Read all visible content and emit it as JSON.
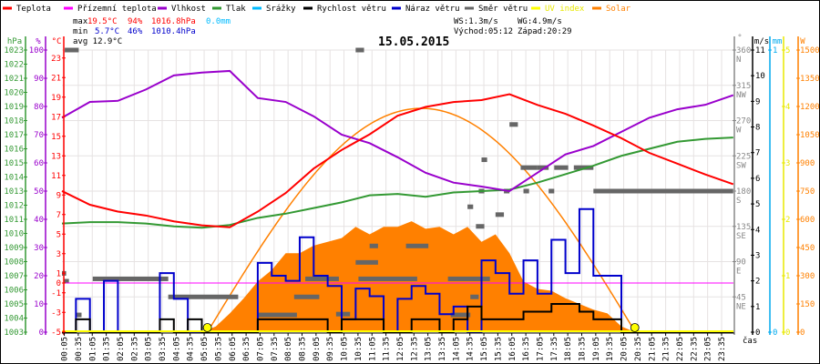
{
  "legend": [
    {
      "label": "Teplota",
      "color": "#ff0000"
    },
    {
      "label": "Přízemní teplota",
      "color": "#ff00ff"
    },
    {
      "label": "Vlhkost",
      "color": "#9900cc"
    },
    {
      "label": "Tlak",
      "color": "#339933"
    },
    {
      "label": "Srážky",
      "color": "#00bbff"
    },
    {
      "label": "Rychlost větru",
      "color": "#000000"
    },
    {
      "label": "Náraz větru",
      "color": "#0000cc"
    },
    {
      "label": "Směr větru",
      "color": "#666666"
    },
    {
      "label": "UV index",
      "color": "#ffff00"
    },
    {
      "label": "Solar",
      "color": "#ff8000"
    }
  ],
  "stats": {
    "max_label": "max",
    "max_temp": "19.5°C",
    "max_hum": "94%",
    "max_press": "1016.8hPa",
    "rain": "0.0mm",
    "min_label": "min",
    "min_temp": "5.7°C",
    "min_hum": "46%",
    "min_press": "1010.4hPa",
    "avg": "avg 12.9°C",
    "ws": "WS:1.3m/s",
    "wg": "WG:4.9m/s",
    "sunrise": "Východ:05:12",
    "sunset": "Západ:20:29"
  },
  "chart_data": {
    "type": "line",
    "title": "15.05.2015",
    "xlabel": "čas",
    "x_ticks": [
      "00:05",
      "00:35",
      "01:05",
      "01:35",
      "02:05",
      "02:35",
      "03:05",
      "03:35",
      "04:05",
      "04:35",
      "05:05",
      "05:35",
      "06:05",
      "06:35",
      "07:05",
      "07:35",
      "08:05",
      "08:35",
      "09:05",
      "09:35",
      "10:05",
      "10:35",
      "11:05",
      "11:35",
      "12:05",
      "12:35",
      "13:05",
      "13:35",
      "14:05",
      "14:35",
      "15:05",
      "15:35",
      "16:05",
      "16:35",
      "17:05",
      "17:35",
      "18:05",
      "18:35",
      "19:05",
      "19:35",
      "20:05",
      "20:35",
      "21:05",
      "21:35",
      "22:05",
      "22:35",
      "23:05",
      "23:35"
    ],
    "axes": {
      "pressure": {
        "unit": "hPa",
        "range": [
          1003,
          1023
        ],
        "ticks": [
          "1023",
          "1022",
          "1021",
          "1020",
          "1019",
          "1018",
          "1017",
          "1016",
          "1015",
          "1014",
          "1013",
          "1012",
          "1011",
          "1010",
          "1009",
          "1008",
          "1007",
          "1006",
          "1005",
          "1004",
          "1003"
        ]
      },
      "humidity": {
        "unit": "%",
        "range": [
          0,
          100
        ],
        "ticks": [
          "100",
          "90",
          "80",
          "70",
          "60",
          "50",
          "40",
          "30",
          "20",
          "10",
          "0"
        ]
      },
      "temperature": {
        "unit": "°C",
        "range": [
          -5,
          23.9
        ],
        "ticks": [
          "23",
          "21",
          "19",
          "17",
          "15",
          "13",
          "11",
          "9",
          "7",
          "5",
          "3",
          "1",
          "0",
          "-1",
          "-3",
          "-5"
        ]
      },
      "direction": {
        "unit": "°",
        "range": [
          0,
          360
        ],
        "ticks": [
          {
            "v": "360",
            "c": "N"
          },
          {
            "v": "315",
            "c": "NW"
          },
          {
            "v": "270",
            "c": "W"
          },
          {
            "v": "225",
            "c": "SW"
          },
          {
            "v": "180",
            "c": "S"
          },
          {
            "v": "135",
            "c": "SE"
          },
          {
            "v": "90",
            "c": "E"
          },
          {
            "v": "45",
            "c": "NE"
          }
        ]
      },
      "wind": {
        "unit": "m/s",
        "range": [
          0,
          11
        ],
        "ticks": [
          "11",
          "10",
          "9",
          "8",
          "7",
          "6",
          "5",
          "4",
          "3",
          "2",
          "1",
          "0"
        ]
      },
      "rain": {
        "unit": "mm",
        "range": [
          0,
          1
        ],
        "ticks": [
          "1",
          "0"
        ]
      },
      "uv": {
        "unit": "",
        "range": [
          0,
          5
        ],
        "ticks": [
          "5",
          "4",
          "3",
          "2",
          "1",
          "0"
        ]
      },
      "solar": {
        "unit": "W",
        "range": [
          0,
          1500
        ],
        "ticks": [
          "1500",
          "1350",
          "1200",
          "1050",
          "900",
          "750",
          "600",
          "450",
          "300",
          "150",
          "0"
        ]
      }
    },
    "hourly_hours": [
      0,
      1,
      2,
      3,
      4,
      5,
      6,
      7,
      8,
      9,
      10,
      11,
      12,
      13,
      14,
      15,
      16,
      17,
      18,
      19,
      20,
      21,
      22,
      23,
      24
    ],
    "temperature": [
      9.4,
      8.0,
      7.3,
      6.9,
      6.3,
      5.9,
      5.7,
      7.3,
      9.2,
      11.7,
      13.6,
      15.2,
      17.1,
      18.0,
      18.5,
      18.7,
      19.3,
      18.2,
      17.3,
      16.1,
      14.8,
      13.3,
      12.2,
      11.1,
      10.1
    ],
    "humidity": [
      76,
      81.6,
      82,
      86,
      91,
      92,
      92.6,
      83,
      81.6,
      76.5,
      70,
      67,
      62,
      56.5,
      53,
      51.6,
      50,
      56.5,
      63,
      66,
      71,
      76,
      79,
      80.6,
      84
    ],
    "pressure": [
      1010.7,
      1010.8,
      1010.8,
      1010.7,
      1010.5,
      1010.4,
      1010.6,
      1011.1,
      1011.4,
      1011.8,
      1012.2,
      1012.7,
      1012.8,
      1012.6,
      1012.9,
      1013.0,
      1013.1,
      1013.6,
      1014.2,
      1014.8,
      1015.5,
      1016.0,
      1016.5,
      1016.7,
      1016.8
    ],
    "apparent_temperature_const": 0,
    "halfhour_hours_step": 0.5,
    "wind_gust": [
      0,
      1.3,
      0,
      2.0,
      0,
      0,
      0,
      2.3,
      1.3,
      0,
      0,
      0,
      0,
      0,
      2.7,
      2.2,
      2.0,
      3.7,
      2.2,
      1.8,
      0.5,
      1.7,
      1.4,
      0,
      1.3,
      1.8,
      1.5,
      0.7,
      1.0,
      0,
      2.8,
      2.3,
      1.5,
      2.8,
      1.5,
      3.6,
      2.3,
      4.8,
      2.2,
      2.2,
      0,
      0,
      0,
      0,
      0,
      0,
      0,
      0,
      0
    ],
    "wind_speed": [
      0,
      0.5,
      0,
      0,
      0,
      0,
      0,
      0.5,
      0,
      0.5,
      0,
      0,
      0,
      0,
      0.5,
      0.5,
      0.5,
      0.5,
      0.5,
      0,
      0.5,
      0.5,
      0.5,
      0,
      0,
      0.5,
      0.5,
      0,
      0.5,
      1.0,
      0.5,
      0.5,
      0.5,
      0.8,
      0.8,
      1.1,
      1.1,
      0.8,
      0.5,
      0.5,
      0,
      0,
      0,
      0,
      0,
      0,
      0,
      0,
      0
    ],
    "solar": [
      0,
      0,
      0,
      0,
      0,
      0,
      0,
      0,
      0,
      0,
      0,
      30,
      100,
      180,
      270,
      330,
      420,
      420,
      460,
      480,
      500,
      560,
      520,
      560,
      560,
      590,
      550,
      560,
      520,
      560,
      480,
      520,
      420,
      270,
      230,
      220,
      180,
      150,
      120,
      100,
      30,
      0,
      0,
      0,
      0,
      0,
      0,
      0,
      0
    ],
    "solar_clear_sky": {
      "start_h": 5.2,
      "end_h": 20.5,
      "peak": 1190
    },
    "wind_direction_segments": [
      [
        0.1,
        0.6,
        360
      ],
      [
        0.0,
        0.15,
        75
      ],
      [
        0.05,
        0.25,
        65
      ],
      [
        1.1,
        3.8,
        68
      ],
      [
        3.8,
        6.3,
        45
      ],
      [
        0.5,
        0.7,
        22
      ],
      [
        7.0,
        8.4,
        22
      ],
      [
        8.3,
        9.2,
        45
      ],
      [
        8.7,
        9.9,
        68
      ],
      [
        9.8,
        10.3,
        23
      ],
      [
        10.5,
        10.8,
        360
      ],
      [
        10.5,
        11.3,
        89
      ],
      [
        10.6,
        12.7,
        68
      ],
      [
        11.0,
        11.3,
        110
      ],
      [
        12.3,
        13.1,
        110
      ],
      [
        13.8,
        15.3,
        68
      ],
      [
        13.9,
        14.6,
        22
      ],
      [
        14.6,
        14.9,
        45
      ],
      [
        14.5,
        14.7,
        160
      ],
      [
        14.8,
        15.1,
        135
      ],
      [
        14.9,
        15.1,
        180
      ],
      [
        15.0,
        15.2,
        220
      ],
      [
        15.5,
        15.8,
        150
      ],
      [
        15.8,
        16.0,
        180
      ],
      [
        16.0,
        16.3,
        265
      ],
      [
        16.4,
        17.0,
        210
      ],
      [
        16.5,
        16.7,
        180
      ],
      [
        17.0,
        17.4,
        210
      ],
      [
        17.4,
        17.6,
        180
      ],
      [
        17.6,
        18.1,
        210
      ],
      [
        18.3,
        19.0,
        210
      ],
      [
        19.0,
        24.0,
        180
      ]
    ],
    "sun_events_h": [
      5.2,
      20.48
    ],
    "uv": 0
  }
}
